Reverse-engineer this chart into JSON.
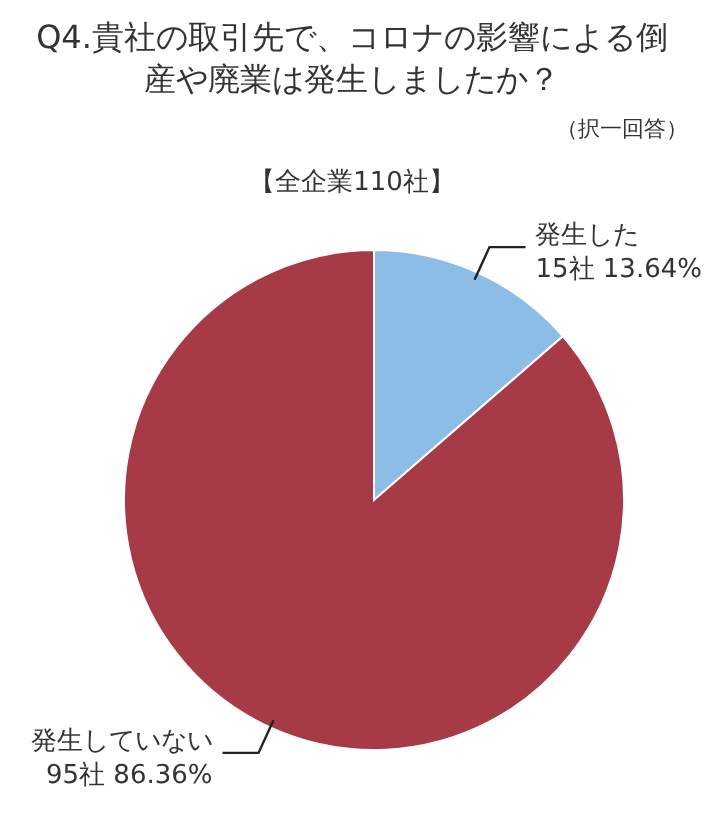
{
  "chart_data": {
    "type": "pie",
    "title": "Q4.貴社の取引先で、コロナの影響による倒産や廃業は発生しましたか？",
    "annotations": [
      "（択一回答）"
    ],
    "subtitle": "【全企業110社】",
    "categories": [
      "発生した",
      "発生していない"
    ],
    "values": [
      15,
      95
    ],
    "value_labels": [
      "15社 13.64%",
      "95社 86.36%"
    ],
    "colors": [
      "#8cbde6",
      "#a63a47"
    ]
  }
}
